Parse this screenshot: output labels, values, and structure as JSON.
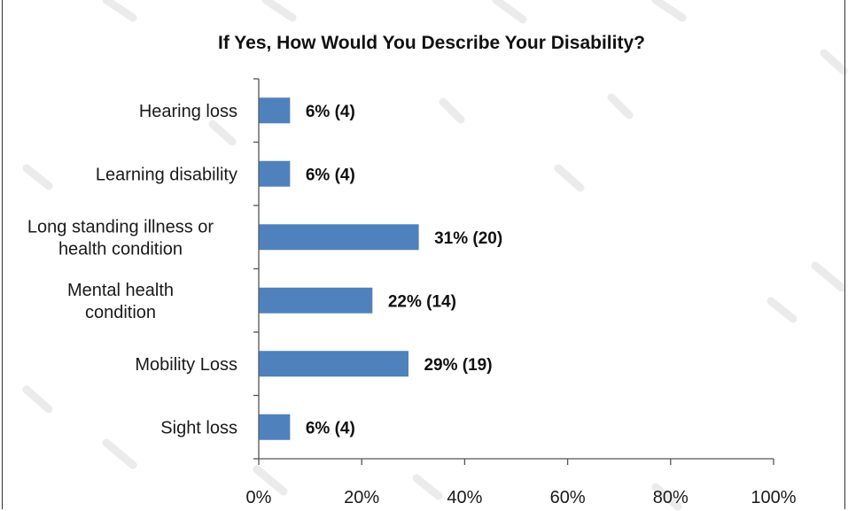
{
  "chart_data": {
    "type": "bar",
    "orientation": "horizontal",
    "title": "If Yes, How Would You Describe Your Disability?",
    "categories": [
      [
        "Hearing loss"
      ],
      [
        "Learning disability"
      ],
      [
        "Long standing illness or",
        "health condition"
      ],
      [
        "Mental health",
        "condition"
      ],
      [
        "Mobility Loss"
      ],
      [
        "Sight loss"
      ]
    ],
    "values": [
      6,
      6,
      31,
      22,
      29,
      6
    ],
    "data_labels": [
      "6% (4)",
      "6% (4)",
      "31% (20)",
      "22% (14)",
      "29% (19)",
      "6% (4)"
    ],
    "xlim": [
      0,
      100
    ],
    "xticks": [
      "0%",
      "20%",
      "40%",
      "60%",
      "80%",
      "100%"
    ],
    "xlabel": "",
    "ylabel": "",
    "grid": false,
    "legend": "none",
    "bar_color": "#4f81bd"
  }
}
